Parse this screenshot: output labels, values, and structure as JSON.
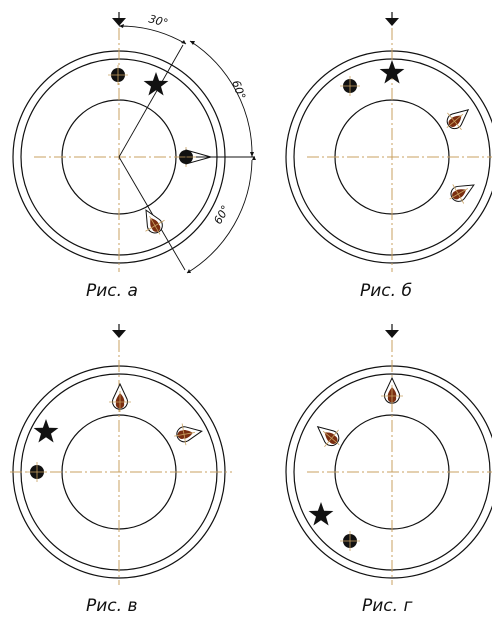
{
  "figures": [
    {
      "id": "a",
      "caption": "Рис. а",
      "angles": [
        "30°",
        "60°",
        "60°"
      ]
    },
    {
      "id": "b",
      "caption": "Рис. б"
    },
    {
      "id": "v",
      "caption": "Рис. в"
    },
    {
      "id": "g",
      "caption": "Рис. г"
    }
  ],
  "colors": {
    "line": "#111111",
    "axis": "#c8a060",
    "marker_fill": "#111111",
    "flame_fill": "#7a2e10"
  },
  "icons": [
    "star-icon",
    "dot-icon",
    "flame-icon",
    "triangle-pointer-icon"
  ]
}
